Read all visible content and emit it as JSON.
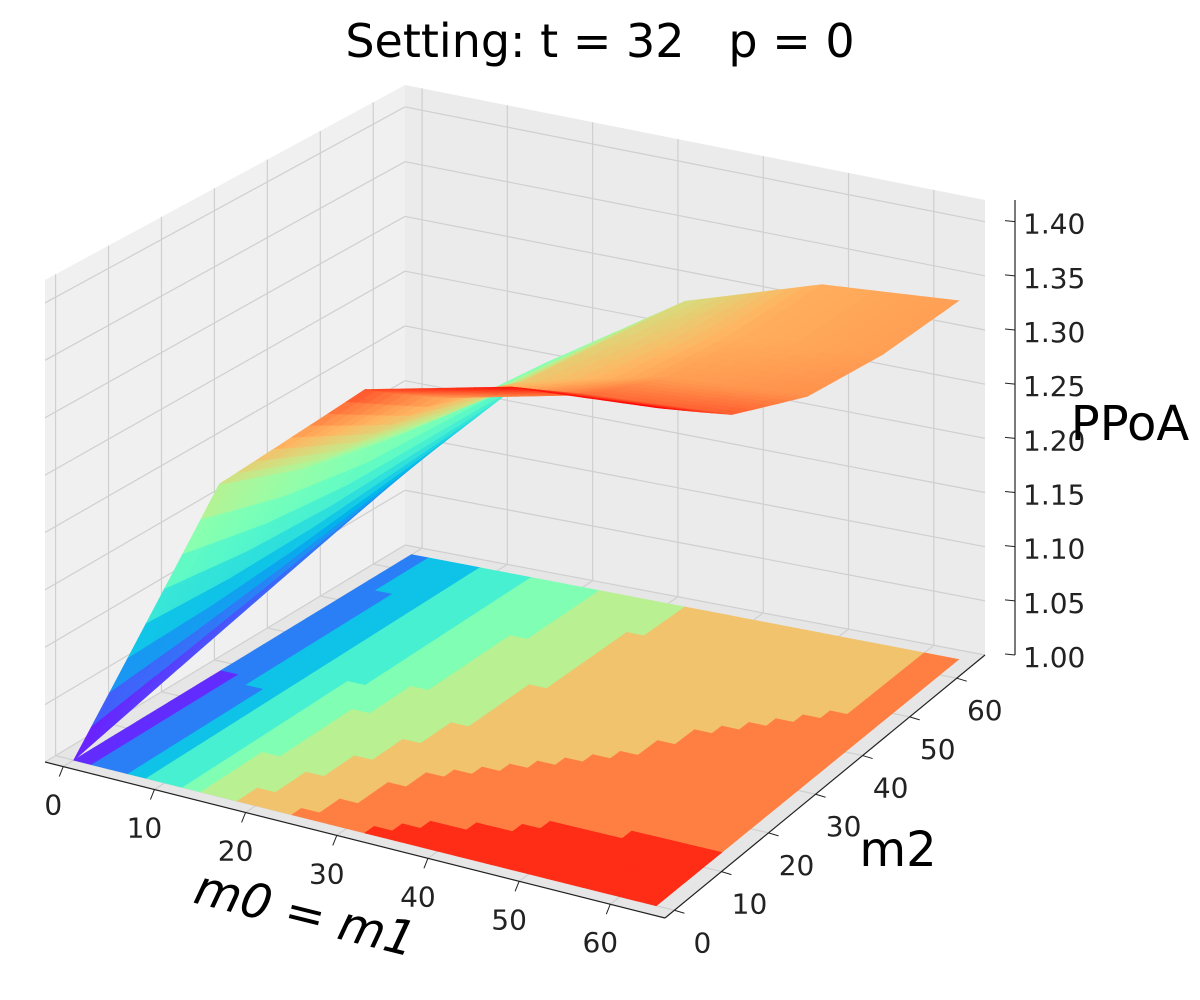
{
  "chart_data": {
    "type": "surface3d",
    "title": "Setting: t = 32   p = 0",
    "xlabel": "m0 = m1",
    "ylabel": "m2",
    "zlabel": "PPoA",
    "xlim": [
      -2,
      66
    ],
    "ylim": [
      -2,
      66
    ],
    "zlim": [
      1.0,
      1.42
    ],
    "xticks": [
      "0",
      "10",
      "20",
      "30",
      "40",
      "50",
      "60"
    ],
    "yticks": [
      "0",
      "10",
      "20",
      "30",
      "40",
      "50",
      "60"
    ],
    "zticks": [
      "1.00",
      "1.05",
      "1.10",
      "1.15",
      "1.20",
      "1.25",
      "1.30",
      "1.35",
      "1.40"
    ],
    "colormap": "rainbow",
    "grid": true,
    "floor_contour": true,
    "grid_x": [
      0,
      16,
      32,
      48,
      64
    ],
    "grid_y": [
      0,
      16,
      32,
      48,
      64
    ],
    "z": [
      [
        1.0,
        1.27,
        1.38,
        1.41,
        1.42
      ],
      [
        1.02,
        1.24,
        1.33,
        1.36,
        1.37
      ],
      [
        1.04,
        1.22,
        1.3,
        1.33,
        1.34
      ],
      [
        1.06,
        1.21,
        1.29,
        1.32,
        1.33
      ],
      [
        1.08,
        1.2,
        1.28,
        1.32,
        1.33
      ]
    ],
    "colors": {
      "pane_left": "#f0f0f0",
      "pane_back": "#ebebeb",
      "pane_floor": "#e6e6e6",
      "grid": "#cfcfcf"
    }
  }
}
